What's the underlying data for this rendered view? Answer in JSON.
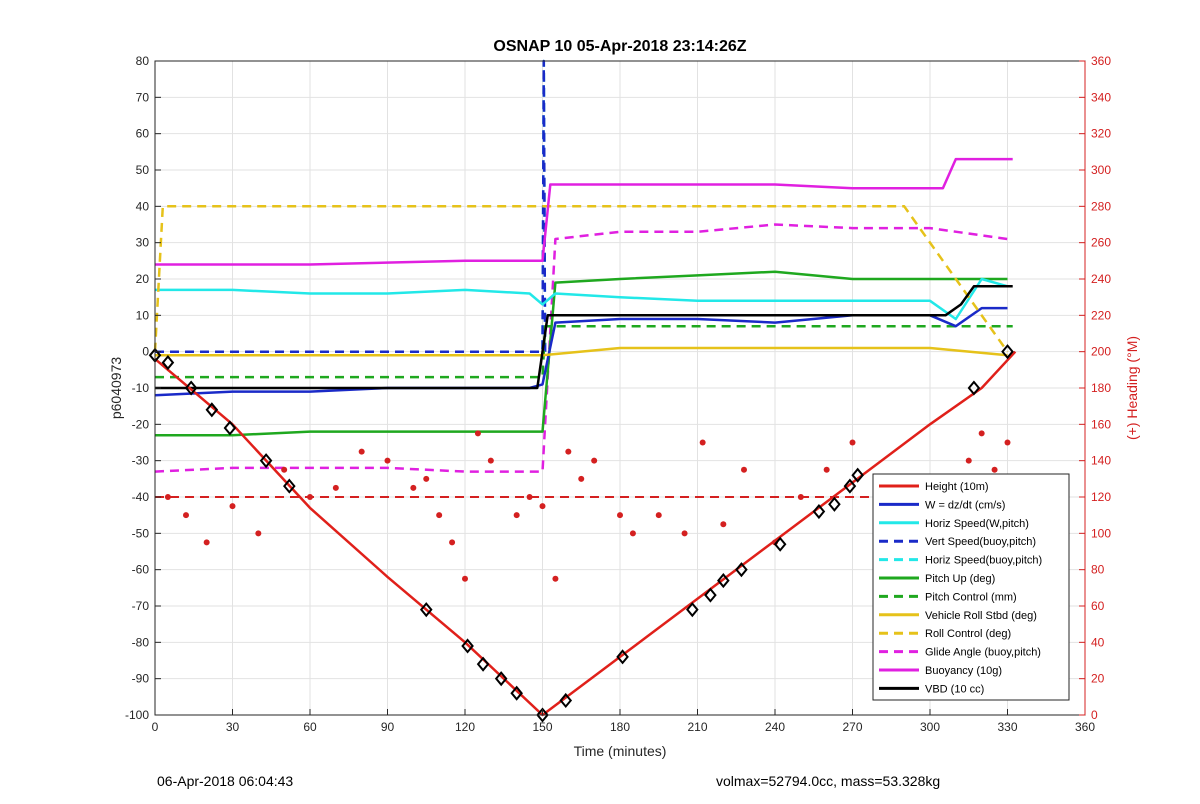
{
  "chart_data": {
    "type": "line",
    "title": "OSNAP 10 05-Apr-2018 23:14:26Z",
    "xlabel": "Time (minutes)",
    "ylabel": "p6040973",
    "y2label": "(+) Heading (°M)",
    "xlim": [
      0,
      360
    ],
    "ylim": [
      -100,
      80
    ],
    "y2lim": [
      0,
      360
    ],
    "x_ticks": [
      0,
      30,
      60,
      90,
      120,
      150,
      180,
      210,
      240,
      270,
      300,
      330,
      360
    ],
    "y_ticks": [
      -100,
      -90,
      -80,
      -70,
      -60,
      -50,
      -40,
      -30,
      -20,
      -10,
      0,
      10,
      20,
      30,
      40,
      50,
      60,
      70,
      80
    ],
    "y2_ticks": [
      0,
      20,
      40,
      60,
      80,
      100,
      120,
      140,
      160,
      180,
      200,
      220,
      240,
      260,
      280,
      300,
      320,
      340,
      360
    ],
    "grid": true,
    "legend_position": "lower-right",
    "colors": {
      "height": "#e0201a",
      "w": "#1a2ac8",
      "horiz_speed_w": "#22e8e8",
      "vert_speed_buoy": "#1a2ac8",
      "horiz_speed_buoy": "#22e8e8",
      "pitch_up": "#1fa81f",
      "pitch_control": "#1fa81f",
      "roll": "#e6c21a",
      "roll_control": "#e6c21a",
      "glide_angle": "#e020e0",
      "buoyancy": "#e020e0",
      "vbd": "#000000",
      "heading_axis": "#d42020"
    },
    "series": [
      {
        "name": "Height (10m)",
        "style": "solid",
        "x": [
          0,
          30,
          60,
          90,
          120,
          150,
          180,
          210,
          240,
          270,
          300,
          320,
          333
        ],
        "values": [
          -2,
          -20,
          -43,
          -62,
          -80,
          -100,
          -84,
          -68,
          -52,
          -36,
          -20,
          -10,
          0
        ]
      },
      {
        "name": "W = dz/dt (cm/s)",
        "style": "solid",
        "x": [
          0,
          30,
          60,
          90,
          120,
          145,
          150,
          155,
          180,
          210,
          240,
          270,
          300,
          310,
          320,
          330
        ],
        "values": [
          -12,
          -11,
          -11,
          -10,
          -10,
          -10,
          -9,
          8,
          9,
          9,
          8,
          10,
          10,
          7,
          12,
          12
        ]
      },
      {
        "name": "Horiz Speed(W,pitch)",
        "style": "solid",
        "x": [
          0,
          30,
          60,
          90,
          120,
          145,
          150,
          155,
          180,
          210,
          240,
          270,
          300,
          310,
          320,
          330
        ],
        "values": [
          17,
          17,
          16,
          16,
          17,
          16,
          13,
          16,
          15,
          14,
          14,
          14,
          14,
          9,
          20,
          18
        ]
      },
      {
        "name": "Vert Speed(buoy,pitch)",
        "style": "dashed",
        "x": [
          0,
          150,
          150.5,
          151
        ],
        "values": [
          0,
          0,
          80,
          0
        ]
      },
      {
        "name": "Horiz Speed(buoy,pitch)",
        "style": "dashed",
        "x": [
          0,
          150,
          150.5,
          151
        ],
        "values": [
          0,
          0,
          80,
          0
        ]
      },
      {
        "name": "Pitch Up (deg)",
        "style": "solid",
        "x": [
          0,
          30,
          60,
          90,
          120,
          150,
          155,
          180,
          210,
          240,
          270,
          300,
          330
        ],
        "values": [
          -23,
          -23,
          -22,
          -22,
          -22,
          -22,
          19,
          20,
          21,
          22,
          20,
          20,
          20
        ]
      },
      {
        "name": "Pitch Control (mm)",
        "style": "dashed",
        "x": [
          0,
          150,
          151,
          332
        ],
        "values": [
          -7,
          -7,
          7,
          7
        ]
      },
      {
        "name": "Vehicle Roll Stbd (deg)",
        "style": "solid",
        "x": [
          0,
          30,
          60,
          90,
          120,
          150,
          180,
          210,
          240,
          270,
          300,
          330
        ],
        "values": [
          -1,
          -1,
          -1,
          -1,
          -1,
          -1,
          1,
          1,
          1,
          1,
          1,
          -1
        ]
      },
      {
        "name": "Roll Control (deg)",
        "style": "dashed",
        "x": [
          0,
          3,
          15,
          30,
          53,
          105,
          128,
          143,
          160,
          178,
          215,
          232,
          245,
          270,
          290,
          330
        ],
        "values": [
          0,
          40,
          40,
          40,
          40,
          40,
          40,
          40,
          40,
          40,
          40,
          40,
          40,
          40,
          40,
          0
        ]
      },
      {
        "name": "Glide Angle (buoy,pitch)",
        "style": "dashed",
        "x": [
          0,
          30,
          60,
          90,
          120,
          150,
          155,
          180,
          210,
          240,
          270,
          300,
          330
        ],
        "values": [
          -33,
          -32,
          -32,
          -32,
          -33,
          -33,
          31,
          33,
          33,
          35,
          34,
          34,
          31
        ]
      },
      {
        "name": "Buoyancy (10g)",
        "style": "solid",
        "x": [
          0,
          60,
          120,
          150,
          153,
          240,
          270,
          305,
          310,
          332
        ],
        "values": [
          24,
          24,
          25,
          25,
          46,
          46,
          45,
          45,
          53,
          53
        ]
      },
      {
        "name": "VBD (10 cc)",
        "style": "solid",
        "x": [
          0,
          148,
          152,
          155,
          240,
          306,
          312,
          317,
          332
        ],
        "values": [
          -10,
          -10,
          10,
          10,
          10,
          10,
          13,
          18,
          18
        ]
      }
    ],
    "heading_series": {
      "name": "Heading",
      "axis": "right",
      "reference_line": 120,
      "x": [
        5,
        12,
        20,
        30,
        40,
        50,
        60,
        70,
        80,
        90,
        100,
        105,
        110,
        115,
        120,
        125,
        130,
        140,
        145,
        150,
        155,
        160,
        165,
        170,
        180,
        185,
        195,
        205,
        212,
        220,
        228,
        240,
        250,
        260,
        270,
        280,
        300,
        315,
        320,
        325,
        330
      ],
      "values": [
        120,
        110,
        95,
        115,
        100,
        135,
        120,
        125,
        145,
        140,
        125,
        130,
        110,
        95,
        75,
        155,
        140,
        110,
        120,
        115,
        75,
        145,
        130,
        140,
        110,
        100,
        110,
        100,
        150,
        105,
        135,
        95,
        120,
        135,
        150,
        105,
        125,
        140,
        155,
        135,
        150
      ]
    },
    "markers": {
      "style": "diamond",
      "x": [
        0,
        5,
        14,
        22,
        29,
        43,
        52,
        105,
        121,
        127,
        134,
        140,
        150,
        159,
        181,
        208,
        215,
        220,
        227,
        242,
        257,
        263,
        269,
        272,
        317,
        330
      ],
      "values": [
        -1,
        -3,
        -10,
        -16,
        -21,
        -30,
        -37,
        -71,
        -81,
        -86,
        -90,
        -94,
        -100,
        -96,
        -84,
        -71,
        -67,
        -63,
        -60,
        -53,
        -44,
        -42,
        -37,
        -34,
        -10,
        0
      ]
    }
  },
  "footer": {
    "left": "06-Apr-2018 06:04:43",
    "right": "volmax=52794.0cc, mass=53.328kg"
  }
}
